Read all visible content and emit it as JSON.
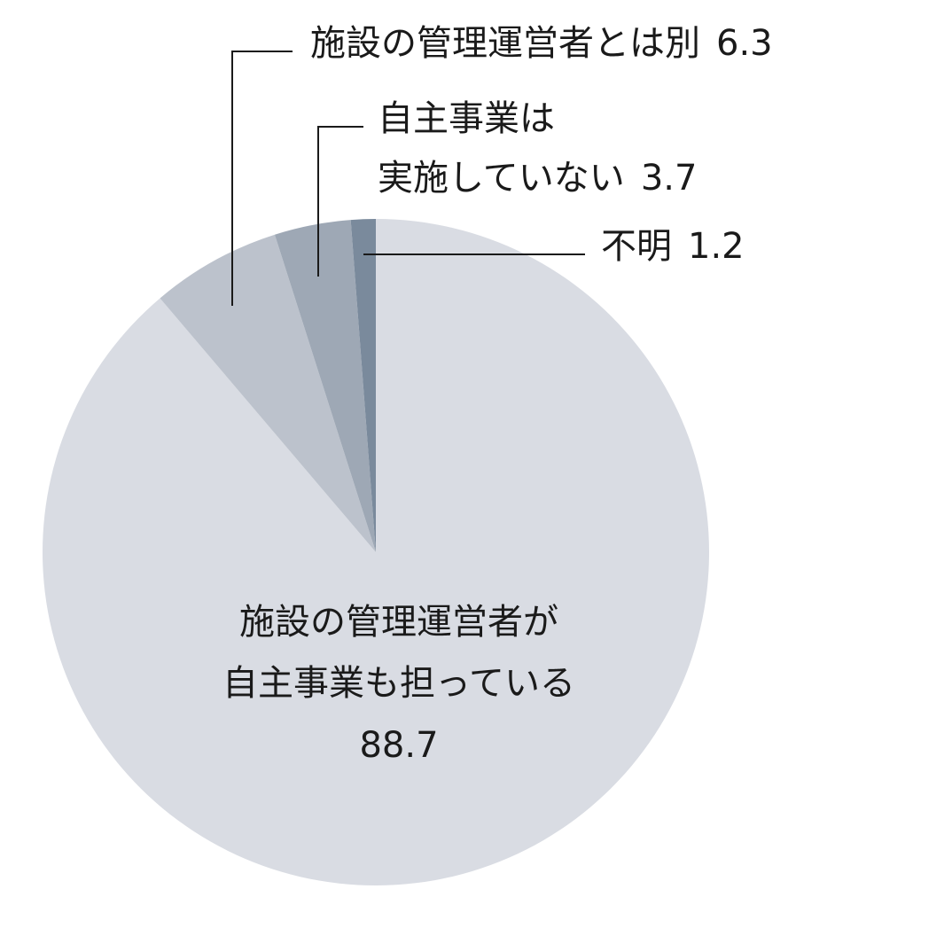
{
  "chart_data": {
    "type": "pie",
    "categories": [
      [
        "施設の管理運営者が",
        "自主事業も担っている"
      ],
      [
        "施設の管理運営者とは別"
      ],
      [
        "自主事業は",
        "実施していない"
      ],
      [
        "不明"
      ]
    ],
    "values": [
      88.7,
      6.3,
      3.7,
      1.2
    ],
    "colors": [
      "#d9dce3",
      "#bcc2cc",
      "#9ea8b5",
      "#7a8a9c"
    ]
  }
}
